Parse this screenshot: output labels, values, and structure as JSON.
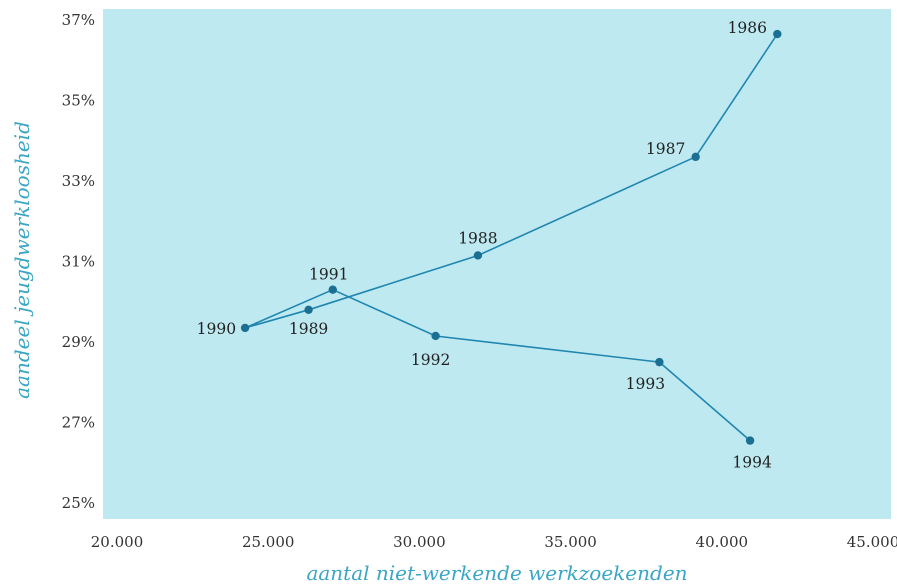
{
  "chart_data": {
    "type": "line",
    "xlabel": "aantal niet-werkende werkzoekenden",
    "ylabel": "aandeel jeugdwerkloosheid",
    "xlim": [
      20000,
      45000
    ],
    "ylim": [
      25,
      37
    ],
    "x_ticks": [
      {
        "value": 20000,
        "label": "20.000"
      },
      {
        "value": 25000,
        "label": "25.000"
      },
      {
        "value": 30000,
        "label": "30.000"
      },
      {
        "value": 35000,
        "label": "35.000"
      },
      {
        "value": 40000,
        "label": "40.000"
      },
      {
        "value": 45000,
        "label": "45.000"
      }
    ],
    "y_ticks": [
      {
        "value": 25,
        "label": "25%"
      },
      {
        "value": 27,
        "label": "27%"
      },
      {
        "value": 29,
        "label": "29%"
      },
      {
        "value": 31,
        "label": "31%"
      },
      {
        "value": 33,
        "label": "33%"
      },
      {
        "value": 35,
        "label": "35%"
      },
      {
        "value": 37,
        "label": "37%"
      }
    ],
    "series": [
      {
        "points": [
          {
            "label": "1986",
            "x": 42100,
            "y": 36.65
          },
          {
            "label": "1987",
            "x": 39400,
            "y": 33.6
          },
          {
            "label": "1988",
            "x": 32200,
            "y": 31.15
          },
          {
            "label": "1989",
            "x": 26600,
            "y": 29.8
          },
          {
            "label": "1990",
            "x": 24500,
            "y": 29.35
          },
          {
            "label": "1991",
            "x": 27400,
            "y": 30.3
          },
          {
            "label": "1992",
            "x": 30800,
            "y": 29.15
          },
          {
            "label": "1993",
            "x": 38200,
            "y": 28.5
          },
          {
            "label": "1994",
            "x": 41200,
            "y": 26.55
          }
        ]
      }
    ],
    "colors": {
      "plot_background": "#bfe9f1",
      "line": "#1f86b0",
      "marker": "#1a6f92",
      "axis_title": "#3aa6c4"
    },
    "grid": false
  }
}
